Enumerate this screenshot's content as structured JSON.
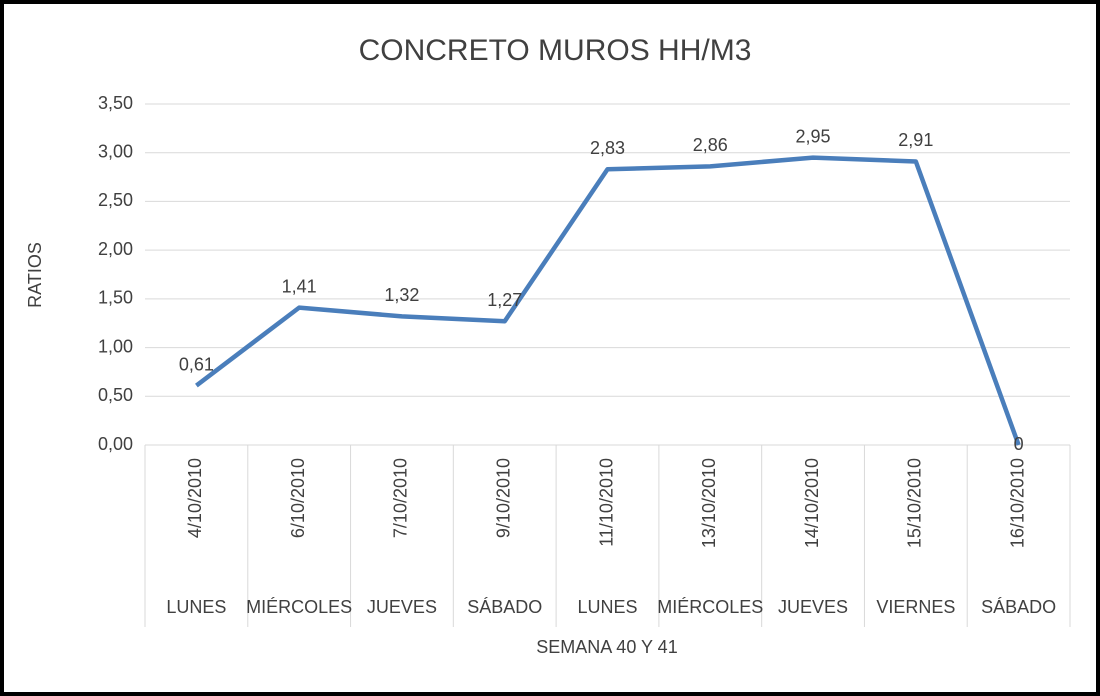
{
  "chart_data": {
    "type": "line",
    "title": "CONCRETO MUROS HH/M3",
    "y_label": "RATIOS",
    "x_label": "SEMANA 40 Y 41",
    "categories": [
      "4/10/2010",
      "6/10/2010",
      "7/10/2010",
      "9/10/2010",
      "11/10/2010",
      "13/10/2010",
      "14/10/2010",
      "15/10/2010",
      "16/10/2010"
    ],
    "weekdays": [
      "LUNES",
      "MIÉRCOLES",
      "JUEVES",
      "SÁBADO",
      "LUNES",
      "MIÉRCOLES",
      "JUEVES",
      "VIERNES",
      "SÁBADO"
    ],
    "values": [
      0.61,
      1.41,
      1.32,
      1.27,
      2.83,
      2.86,
      2.95,
      2.91,
      0
    ],
    "value_labels": [
      "0,61",
      "1,41",
      "1,32",
      "1,27",
      "2,83",
      "2,86",
      "2,95",
      "2,91",
      "0"
    ],
    "color": "#4a7ebb",
    "ylim": [
      0,
      3.5
    ],
    "yticks": [
      {
        "value": 0,
        "label": "0,00"
      },
      {
        "value": 0.5,
        "label": "0,50"
      },
      {
        "value": 1,
        "label": "1,00"
      },
      {
        "value": 1.5,
        "label": "1,50"
      },
      {
        "value": 2,
        "label": "2,00"
      },
      {
        "value": 2.5,
        "label": "2,50"
      },
      {
        "value": 3,
        "label": "3,00"
      },
      {
        "value": 3.5,
        "label": "3,50"
      }
    ],
    "grid": true
  }
}
